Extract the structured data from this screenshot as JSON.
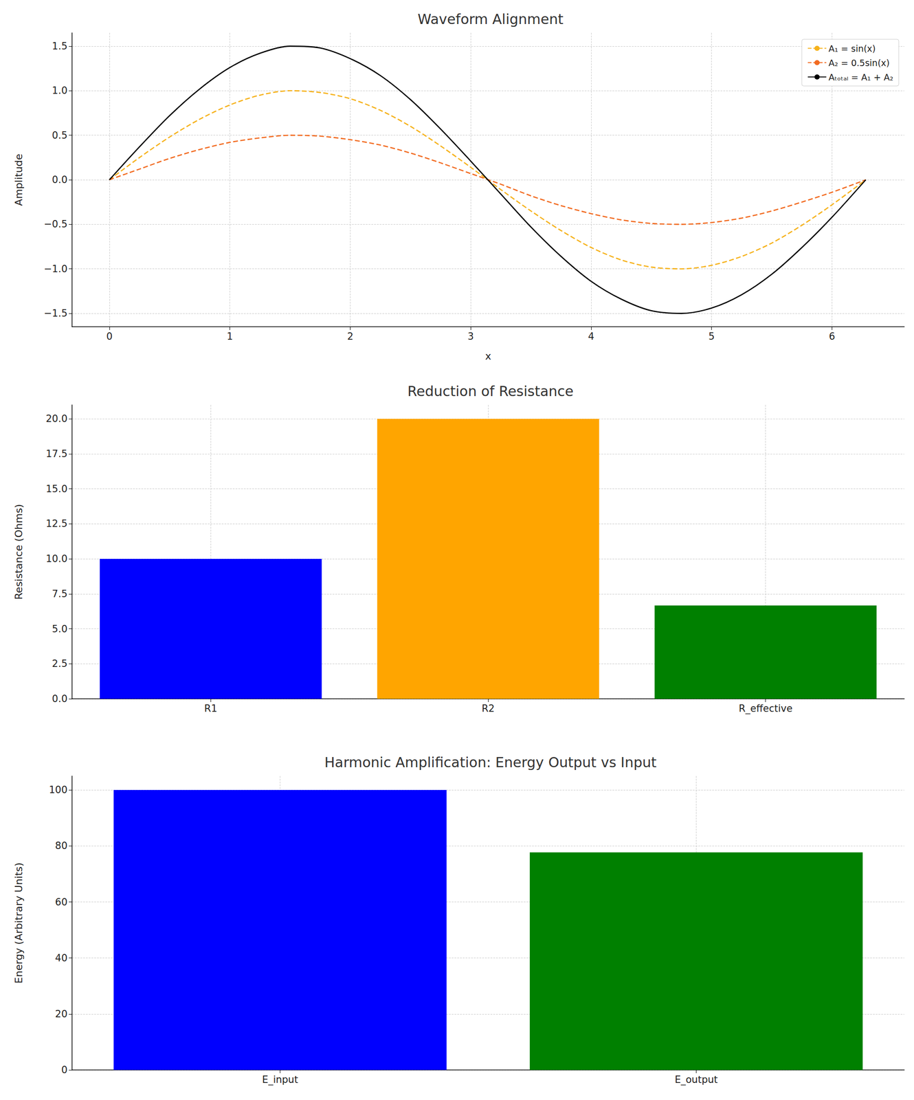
{
  "chart_data": [
    {
      "type": "line",
      "title": "Waveform Alignment",
      "x_label": "x",
      "y_label": "Amplitude",
      "x": [
        0,
        0.25,
        0.5,
        0.75,
        1.0,
        1.25,
        1.5,
        1.75,
        2.0,
        2.25,
        2.5,
        2.75,
        3.0,
        3.25,
        3.5,
        3.75,
        4.0,
        4.25,
        4.5,
        4.75,
        5.0,
        5.25,
        5.5,
        5.75,
        6.0,
        6.28
      ],
      "series": [
        {
          "name": "A₁ = sin(x)",
          "color": "#f6b21b",
          "line_style": "dashed",
          "values": [
            0,
            0.25,
            0.48,
            0.68,
            0.84,
            0.95,
            1.0,
            0.98,
            0.91,
            0.78,
            0.6,
            0.38,
            0.14,
            -0.11,
            -0.35,
            -0.57,
            -0.76,
            -0.9,
            -0.98,
            -1.0,
            -0.96,
            -0.86,
            -0.71,
            -0.51,
            -0.28,
            0
          ]
        },
        {
          "name": "A₂ = 0.5sin(x)",
          "color": "#f26b21",
          "line_style": "dashed",
          "values": [
            0,
            0.12,
            0.24,
            0.34,
            0.42,
            0.47,
            0.5,
            0.49,
            0.45,
            0.39,
            0.3,
            0.19,
            0.07,
            -0.05,
            -0.18,
            -0.29,
            -0.38,
            -0.45,
            -0.49,
            -0.5,
            -0.48,
            -0.43,
            -0.35,
            -0.25,
            -0.14,
            0
          ]
        },
        {
          "name": "Aₜₒₜₐₗ = A₁ + A₂",
          "color": "#000000",
          "line_style": "solid",
          "values": [
            0,
            0.37,
            0.72,
            1.02,
            1.26,
            1.42,
            1.5,
            1.48,
            1.36,
            1.17,
            0.9,
            0.57,
            0.21,
            -0.16,
            -0.53,
            -0.86,
            -1.14,
            -1.34,
            -1.47,
            -1.5,
            -1.44,
            -1.29,
            -1.06,
            -0.76,
            -0.42,
            0
          ]
        }
      ],
      "xlim": [
        -0.31,
        6.6
      ],
      "xticks": [
        0,
        1,
        2,
        3,
        4,
        5,
        6
      ],
      "ylim": [
        -1.65,
        1.65
      ],
      "yticks": [
        {
          "value": -1.5,
          "label": "−1.5"
        },
        {
          "value": -1,
          "label": "−1.0"
        },
        {
          "value": -0.5,
          "label": "−0.5"
        },
        {
          "value": 0,
          "label": "0.0"
        },
        0.5,
        {
          "value": 1,
          "label": "1.0"
        },
        1.5
      ],
      "grid": true,
      "legend": "upper right"
    },
    {
      "type": "bar",
      "title": "Reduction of Resistance",
      "y_label": "Resistance (Ohms)",
      "categories": [
        "R1",
        "R2",
        "R_effective"
      ],
      "values": [
        10,
        20,
        6.67
      ],
      "colors": [
        "#0000ff",
        "#ffa500",
        "#008000"
      ],
      "ylim": [
        0,
        21
      ],
      "yticks": [
        {
          "value": 0,
          "label": "0.0"
        },
        2.5,
        {
          "value": 5,
          "label": "5.0"
        },
        7.5,
        {
          "value": 10,
          "label": "10.0"
        },
        12.5,
        {
          "value": 15,
          "label": "15.0"
        },
        17.5,
        {
          "value": 20,
          "label": "20.0"
        }
      ],
      "grid": true
    },
    {
      "type": "bar",
      "title": "Harmonic Amplification: Energy Output vs Input",
      "y_label": "Energy (Arbitrary Units)",
      "categories": [
        "E_input",
        "E_output"
      ],
      "values": [
        100,
        77.7
      ],
      "colors": [
        "#0000ff",
        "#008000"
      ],
      "ylim": [
        0,
        105
      ],
      "yticks": [
        0,
        20,
        40,
        60,
        80,
        100
      ],
      "grid": true
    }
  ]
}
